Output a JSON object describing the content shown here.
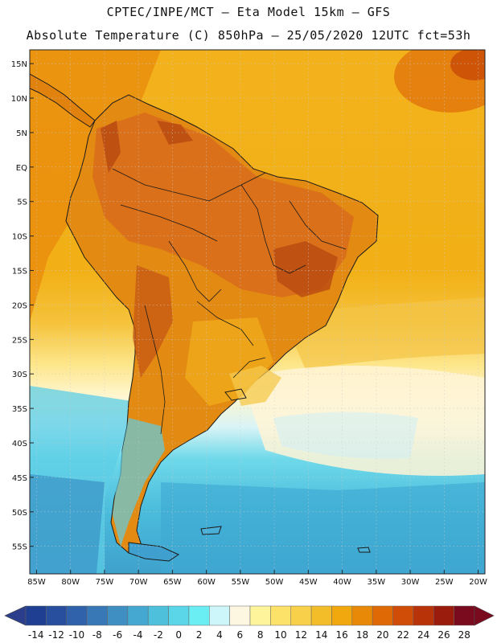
{
  "title_line1": "CPTEC/INPE/MCT —  Eta Model 15km — GFS",
  "title_line2": "Absolute Temperature (C) 850hPa — 25/05/2020 12UTC fct=53h",
  "map": {
    "lon_range": [
      -86,
      -19
    ],
    "lat_range": [
      -59,
      17
    ],
    "lat_labels": [
      {
        "lat": 15,
        "text": "15N"
      },
      {
        "lat": 10,
        "text": "10N"
      },
      {
        "lat": 5,
        "text": "5N"
      },
      {
        "lat": 0,
        "text": "EQ"
      },
      {
        "lat": -5,
        "text": "5S"
      },
      {
        "lat": -10,
        "text": "10S"
      },
      {
        "lat": -15,
        "text": "15S"
      },
      {
        "lat": -20,
        "text": "20S"
      },
      {
        "lat": -25,
        "text": "25S"
      },
      {
        "lat": -30,
        "text": "30S"
      },
      {
        "lat": -35,
        "text": "35S"
      },
      {
        "lat": -40,
        "text": "40S"
      },
      {
        "lat": -45,
        "text": "45S"
      },
      {
        "lat": -50,
        "text": "50S"
      },
      {
        "lat": -55,
        "text": "55S"
      }
    ],
    "lon_labels": [
      {
        "lon": -85,
        "text": "85W"
      },
      {
        "lon": -80,
        "text": "80W"
      },
      {
        "lon": -75,
        "text": "75W"
      },
      {
        "lon": -70,
        "text": "70W"
      },
      {
        "lon": -65,
        "text": "65W"
      },
      {
        "lon": -60,
        "text": "60W"
      },
      {
        "lon": -55,
        "text": "55W"
      },
      {
        "lon": -50,
        "text": "50W"
      },
      {
        "lon": -45,
        "text": "45W"
      },
      {
        "lon": -40,
        "text": "40W"
      },
      {
        "lon": -35,
        "text": "35W"
      },
      {
        "lon": -30,
        "text": "30W"
      },
      {
        "lon": -25,
        "text": "25W"
      },
      {
        "lon": -20,
        "text": "20W"
      }
    ]
  },
  "colorbar": {
    "ticks": [
      "-14",
      "-12",
      "-10",
      "-8",
      "-6",
      "-4",
      "-2",
      "0",
      "2",
      "4",
      "6",
      "8",
      "10",
      "12",
      "14",
      "16",
      "18",
      "20",
      "22",
      "24",
      "26",
      "28"
    ],
    "under_color": "#2a3e8c",
    "over_color": "#7a0a1e",
    "colors": [
      "#1f3f92",
      "#274f9e",
      "#2f62aa",
      "#3878b6",
      "#3f8fc3",
      "#45a8d0",
      "#4fc0dc",
      "#5bd6e8",
      "#6aeef4",
      "#cdf6fa",
      "#fdf7e2",
      "#fef49c",
      "#fde26a",
      "#f9d04a",
      "#f3bd2a",
      "#f0a80e",
      "#e88a08",
      "#df6a05",
      "#cf4d06",
      "#b93309",
      "#9a1c0c",
      "#7a0a1e"
    ]
  },
  "colors": {
    "ocean_warm": "#f1ad12",
    "ocean_mid": "#f5c23a",
    "ocean_pale": "#fff6c8",
    "ocean_cool": "#8fe6f2",
    "ocean_cold": "#49b3d3",
    "land_hot": "#d9671a",
    "land_warm": "#e88f10",
    "land_hotspot": "#b84a10"
  }
}
